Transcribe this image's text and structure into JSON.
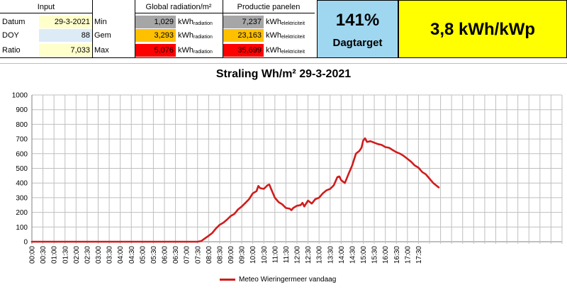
{
  "table": {
    "input_header": "Input",
    "radiation_header": "Global radiation/m²",
    "production_header": "Productie panelen",
    "rows": [
      {
        "label": "Datum",
        "input": "29-3-2021",
        "stat": "Min",
        "radiation": "1,029",
        "rad_unit": "kWh",
        "rad_sub": "radiation",
        "production": "7,237",
        "prod_unit": "kWh",
        "prod_sub": "elektriciteit"
      },
      {
        "label": "DOY",
        "input": "88",
        "stat": "Gem",
        "radiation": "3,293",
        "rad_unit": "kWh",
        "rad_sub": "radiation",
        "production": "23,163",
        "prod_unit": "kWh",
        "prod_sub": "elektriciteit"
      },
      {
        "label": "Ratio",
        "input": "7,033",
        "stat": "Max",
        "radiation": "5,076",
        "rad_unit": "kWh",
        "rad_sub": "radiation",
        "production": "35,699",
        "prod_unit": "kWh",
        "prod_sub": "elektriciteit"
      }
    ],
    "colors": {
      "input_row1": "#ffffcc",
      "input_row2": "#ddebf7",
      "input_row3": "#ffffcc",
      "min": "#a6a6a6",
      "gem": "#ffc000",
      "max": "#ff0000"
    }
  },
  "kpi": {
    "percentage": "141%",
    "percentage_caption": "Dagtarget",
    "yield": "3,8 kWh/kWp",
    "colors": {
      "percentage_bg": "#9fd7f0",
      "yield_bg": "#ffff00"
    }
  },
  "chart_data": {
    "type": "line",
    "title": "Straling Wh/m²   29-3-2021",
    "xlabel": "",
    "ylabel": "",
    "ylim": [
      0,
      1000
    ],
    "yticks": [
      0,
      100,
      200,
      300,
      400,
      500,
      600,
      700,
      800,
      900,
      1000
    ],
    "xticks": [
      "00:00",
      "00:30",
      "01:00",
      "01:30",
      "02:00",
      "02:30",
      "03:00",
      "03:30",
      "04:00",
      "04:30",
      "05:00",
      "05:30",
      "06:00",
      "06:30",
      "07:00",
      "07:30",
      "08:00",
      "08:30",
      "09:00",
      "09:30",
      "10:00",
      "10:30",
      "11:00",
      "11:30",
      "12:00",
      "12:30",
      "13:00",
      "13:30",
      "14:00",
      "14:30",
      "15:00",
      "15:30",
      "16:00",
      "16:30",
      "17:00",
      "17:30"
    ],
    "grid": true,
    "legend_position": "bottom",
    "color": "#d01c1c",
    "series": [
      {
        "name": "Meteo Wieringermeer vandaag",
        "points": [
          [
            0.0,
            0
          ],
          [
            1.0,
            0
          ],
          [
            2.0,
            0
          ],
          [
            3.0,
            0
          ],
          [
            4.0,
            0
          ],
          [
            5.0,
            0
          ],
          [
            6.0,
            0
          ],
          [
            7.0,
            0
          ],
          [
            7.5,
            0
          ],
          [
            7.67,
            5
          ],
          [
            7.83,
            22
          ],
          [
            8.0,
            40
          ],
          [
            8.17,
            60
          ],
          [
            8.33,
            90
          ],
          [
            8.5,
            115
          ],
          [
            8.67,
            130
          ],
          [
            8.83,
            150
          ],
          [
            9.0,
            175
          ],
          [
            9.17,
            190
          ],
          [
            9.33,
            220
          ],
          [
            9.5,
            240
          ],
          [
            9.67,
            265
          ],
          [
            9.83,
            290
          ],
          [
            10.0,
            330
          ],
          [
            10.17,
            345
          ],
          [
            10.25,
            380
          ],
          [
            10.33,
            365
          ],
          [
            10.5,
            360
          ],
          [
            10.67,
            385
          ],
          [
            10.75,
            390
          ],
          [
            10.83,
            360
          ],
          [
            11.0,
            300
          ],
          [
            11.17,
            270
          ],
          [
            11.33,
            255
          ],
          [
            11.5,
            230
          ],
          [
            11.67,
            225
          ],
          [
            11.75,
            215
          ],
          [
            11.83,
            230
          ],
          [
            12.0,
            245
          ],
          [
            12.17,
            250
          ],
          [
            12.25,
            265
          ],
          [
            12.33,
            240
          ],
          [
            12.5,
            280
          ],
          [
            12.67,
            260
          ],
          [
            12.83,
            290
          ],
          [
            13.0,
            300
          ],
          [
            13.17,
            330
          ],
          [
            13.33,
            350
          ],
          [
            13.5,
            360
          ],
          [
            13.67,
            385
          ],
          [
            13.83,
            440
          ],
          [
            13.92,
            445
          ],
          [
            14.0,
            420
          ],
          [
            14.17,
            400
          ],
          [
            14.33,
            460
          ],
          [
            14.5,
            520
          ],
          [
            14.67,
            600
          ],
          [
            14.83,
            620
          ],
          [
            14.92,
            640
          ],
          [
            15.0,
            690
          ],
          [
            15.08,
            705
          ],
          [
            15.17,
            680
          ],
          [
            15.33,
            685
          ],
          [
            15.5,
            675
          ],
          [
            15.67,
            665
          ],
          [
            15.83,
            660
          ],
          [
            16.0,
            645
          ],
          [
            16.17,
            640
          ],
          [
            16.33,
            625
          ],
          [
            16.5,
            610
          ],
          [
            16.67,
            600
          ],
          [
            16.83,
            585
          ],
          [
            17.0,
            565
          ],
          [
            17.17,
            545
          ],
          [
            17.33,
            520
          ],
          [
            17.5,
            505
          ],
          [
            17.67,
            475
          ],
          [
            17.83,
            460
          ],
          [
            18.0,
            430
          ],
          [
            18.17,
            400
          ],
          [
            18.33,
            380
          ],
          [
            18.42,
            370
          ]
        ]
      }
    ]
  }
}
